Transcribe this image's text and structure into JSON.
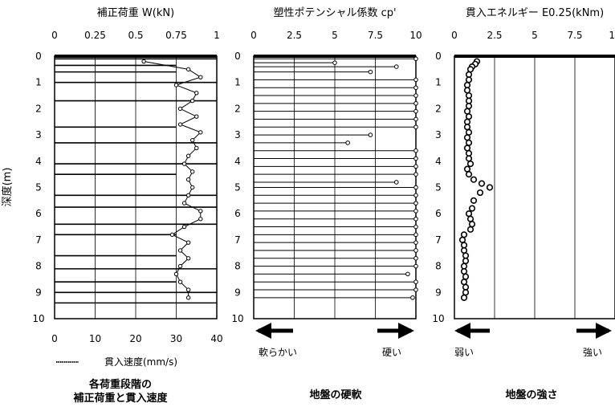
{
  "y_axis_label": "深度(m)",
  "depth_ticks": [
    "0",
    "1",
    "2",
    "3",
    "4",
    "5",
    "6",
    "7",
    "8",
    "9",
    "10"
  ],
  "colors": {
    "ink": "#000000",
    "background": "#ffffff"
  },
  "chart_data": [
    {
      "type": "line",
      "title": "補正荷重 W(kN)",
      "top_axis_ticks": [
        "0",
        "0.25",
        "0.5",
        "0.75",
        "1"
      ],
      "top_axis_range": [
        0,
        1
      ],
      "bottom_axis_ticks": [
        "0",
        "10",
        "20",
        "30",
        "40"
      ],
      "bottom_axis_range": [
        0,
        40
      ],
      "bottom_axis_label": "貫入速度(mm/s)",
      "legend_label": "",
      "ylim": [
        0,
        10
      ],
      "load_steps": [
        {
          "depth": 0.1,
          "load": 1.0
        },
        {
          "depth": 0.35,
          "load": 0.75
        },
        {
          "depth": 0.6,
          "load": 0.75
        },
        {
          "depth": 1.0,
          "load": 1.0
        },
        {
          "depth": 1.7,
          "load": 1.0
        },
        {
          "depth": 2.7,
          "load": 0.75
        },
        {
          "depth": 3.3,
          "load": 1.0
        },
        {
          "depth": 4.1,
          "load": 1.0
        },
        {
          "depth": 4.5,
          "load": 0.75
        },
        {
          "depth": 5.3,
          "load": 1.0
        },
        {
          "depth": 5.75,
          "load": 1.0
        },
        {
          "depth": 6.4,
          "load": 1.0
        },
        {
          "depth": 6.8,
          "load": 0.75
        },
        {
          "depth": 7.6,
          "load": 0.75
        },
        {
          "depth": 8.1,
          "load": 1.0
        },
        {
          "depth": 8.6,
          "load": 0.75
        },
        {
          "depth": 9.0,
          "load": 1.0
        },
        {
          "depth": 9.4,
          "load": 1.0
        }
      ],
      "penetration_speed": [
        {
          "depth": 0.2,
          "speed": 22
        },
        {
          "depth": 0.5,
          "speed": 33
        },
        {
          "depth": 0.8,
          "speed": 36
        },
        {
          "depth": 1.1,
          "speed": 30
        },
        {
          "depth": 1.4,
          "speed": 35
        },
        {
          "depth": 1.7,
          "speed": 34
        },
        {
          "depth": 2.0,
          "speed": 31
        },
        {
          "depth": 2.3,
          "speed": 35
        },
        {
          "depth": 2.6,
          "speed": 31
        },
        {
          "depth": 2.9,
          "speed": 36
        },
        {
          "depth": 3.2,
          "speed": 34
        },
        {
          "depth": 3.5,
          "speed": 35
        },
        {
          "depth": 3.8,
          "speed": 33
        },
        {
          "depth": 4.1,
          "speed": 32
        },
        {
          "depth": 4.4,
          "speed": 34
        },
        {
          "depth": 4.7,
          "speed": 33
        },
        {
          "depth": 5.0,
          "speed": 34
        },
        {
          "depth": 5.3,
          "speed": 33
        },
        {
          "depth": 5.6,
          "speed": 32
        },
        {
          "depth": 5.9,
          "speed": 36
        },
        {
          "depth": 6.2,
          "speed": 36
        },
        {
          "depth": 6.5,
          "speed": 32
        },
        {
          "depth": 6.8,
          "speed": 29
        },
        {
          "depth": 7.1,
          "speed": 33
        },
        {
          "depth": 7.4,
          "speed": 31
        },
        {
          "depth": 7.7,
          "speed": 33
        },
        {
          "depth": 8.0,
          "speed": 31
        },
        {
          "depth": 8.3,
          "speed": 30
        },
        {
          "depth": 8.6,
          "speed": 31
        },
        {
          "depth": 8.9,
          "speed": 33
        },
        {
          "depth": 9.2,
          "speed": 33
        }
      ],
      "caption": [
        "各荷重段階の",
        "補正荷重と貫入速度"
      ]
    },
    {
      "type": "line",
      "title": "塑性ポテンシャル係数 cp'",
      "x_ticks": [
        "0",
        "2.5",
        "5",
        "7.5",
        "10"
      ],
      "xlim": [
        0,
        10
      ],
      "ylim": [
        0,
        10
      ],
      "direction_left": "軟らかい",
      "direction_right": "硬い",
      "points": [
        {
          "depth": 0.1,
          "value": 10.0
        },
        {
          "depth": 0.25,
          "value": 5.0
        },
        {
          "depth": 0.4,
          "value": 8.8
        },
        {
          "depth": 0.6,
          "value": 7.2
        },
        {
          "depth": 0.9,
          "value": 10.0
        },
        {
          "depth": 1.2,
          "value": 10.0
        },
        {
          "depth": 1.5,
          "value": 10.0
        },
        {
          "depth": 1.8,
          "value": 10.0
        },
        {
          "depth": 2.1,
          "value": 10.0
        },
        {
          "depth": 2.4,
          "value": 10.0
        },
        {
          "depth": 2.7,
          "value": 10.0
        },
        {
          "depth": 3.0,
          "value": 7.2
        },
        {
          "depth": 3.3,
          "value": 5.8
        },
        {
          "depth": 3.6,
          "value": 10.0
        },
        {
          "depth": 3.9,
          "value": 10.0
        },
        {
          "depth": 4.2,
          "value": 10.0
        },
        {
          "depth": 4.5,
          "value": 10.0
        },
        {
          "depth": 4.8,
          "value": 8.8
        },
        {
          "depth": 5.0,
          "value": 10.0
        },
        {
          "depth": 5.3,
          "value": 10.0
        },
        {
          "depth": 5.6,
          "value": 10.0
        },
        {
          "depth": 5.9,
          "value": 10.0
        },
        {
          "depth": 6.2,
          "value": 10.0
        },
        {
          "depth": 6.5,
          "value": 10.0
        },
        {
          "depth": 6.8,
          "value": 10.0
        },
        {
          "depth": 7.1,
          "value": 10.0
        },
        {
          "depth": 7.4,
          "value": 10.0
        },
        {
          "depth": 7.7,
          "value": 10.0
        },
        {
          "depth": 8.0,
          "value": 10.0
        },
        {
          "depth": 8.3,
          "value": 9.5
        },
        {
          "depth": 8.6,
          "value": 10.0
        },
        {
          "depth": 8.9,
          "value": 10.0
        },
        {
          "depth": 9.2,
          "value": 9.8
        }
      ],
      "caption": [
        "地盤の硬軟"
      ]
    },
    {
      "type": "scatter",
      "title": "貫入エネルギー E0.25(kNm)",
      "x_ticks": [
        "0",
        "2.5",
        "5",
        "7.5",
        "10"
      ],
      "xlim": [
        0,
        10
      ],
      "ylim": [
        0,
        10
      ],
      "direction_left": "弱い",
      "direction_right": "強い",
      "points": [
        {
          "depth": 0.2,
          "value": 1.4
        },
        {
          "depth": 0.3,
          "value": 1.3
        },
        {
          "depth": 0.4,
          "value": 1.1
        },
        {
          "depth": 0.5,
          "value": 1.0
        },
        {
          "depth": 0.7,
          "value": 0.9
        },
        {
          "depth": 0.9,
          "value": 0.9
        },
        {
          "depth": 1.1,
          "value": 0.8
        },
        {
          "depth": 1.3,
          "value": 0.8
        },
        {
          "depth": 1.5,
          "value": 0.9
        },
        {
          "depth": 1.7,
          "value": 0.9
        },
        {
          "depth": 1.9,
          "value": 0.9
        },
        {
          "depth": 2.1,
          "value": 0.8
        },
        {
          "depth": 2.3,
          "value": 0.9
        },
        {
          "depth": 2.5,
          "value": 0.8
        },
        {
          "depth": 2.7,
          "value": 0.8
        },
        {
          "depth": 2.9,
          "value": 0.9
        },
        {
          "depth": 3.1,
          "value": 0.8
        },
        {
          "depth": 3.3,
          "value": 0.9
        },
        {
          "depth": 3.5,
          "value": 0.8
        },
        {
          "depth": 3.7,
          "value": 0.9
        },
        {
          "depth": 3.9,
          "value": 0.9
        },
        {
          "depth": 4.1,
          "value": 1.0
        },
        {
          "depth": 4.3,
          "value": 0.8
        },
        {
          "depth": 4.5,
          "value": 0.9
        },
        {
          "depth": 4.7,
          "value": 1.2
        },
        {
          "depth": 4.85,
          "value": 1.7
        },
        {
          "depth": 5.0,
          "value": 2.2
        },
        {
          "depth": 5.2,
          "value": 1.6
        },
        {
          "depth": 5.5,
          "value": 1.2
        },
        {
          "depth": 5.8,
          "value": 1.1
        },
        {
          "depth": 6.0,
          "value": 0.9
        },
        {
          "depth": 6.2,
          "value": 1.0
        },
        {
          "depth": 6.4,
          "value": 1.1
        },
        {
          "depth": 6.6,
          "value": 1.0
        },
        {
          "depth": 6.8,
          "value": 0.6
        },
        {
          "depth": 7.0,
          "value": 0.5
        },
        {
          "depth": 7.2,
          "value": 0.6
        },
        {
          "depth": 7.4,
          "value": 0.6
        },
        {
          "depth": 7.6,
          "value": 0.7
        },
        {
          "depth": 7.8,
          "value": 0.7
        },
        {
          "depth": 8.0,
          "value": 0.6
        },
        {
          "depth": 8.2,
          "value": 0.6
        },
        {
          "depth": 8.4,
          "value": 0.7
        },
        {
          "depth": 8.6,
          "value": 0.6
        },
        {
          "depth": 8.8,
          "value": 0.7
        },
        {
          "depth": 9.0,
          "value": 0.7
        },
        {
          "depth": 9.2,
          "value": 0.6
        }
      ],
      "caption": [
        "地盤の強さ"
      ]
    }
  ]
}
